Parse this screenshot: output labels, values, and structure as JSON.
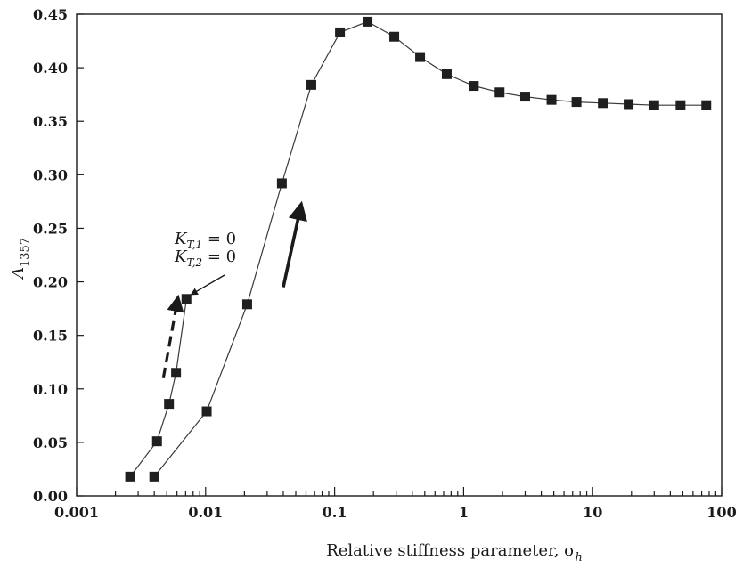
{
  "chart_data": {
    "type": "scatter",
    "xscale": "log",
    "xlim": [
      0.001,
      100
    ],
    "ylim": [
      0.0,
      0.45
    ],
    "xlabel": "Relative stiffness parameter, σ",
    "xlabel_sub": "h",
    "ylabel": "Λ",
    "ylabel_sub": "1357",
    "x_ticks": [
      {
        "value": 0.001,
        "label": "0.001"
      },
      {
        "value": 0.01,
        "label": "0.01"
      },
      {
        "value": 0.1,
        "label": "0.1"
      },
      {
        "value": 1,
        "label": "1"
      },
      {
        "value": 10,
        "label": "10"
      },
      {
        "value": 100,
        "label": "100"
      }
    ],
    "y_ticks": [
      {
        "value": 0.0,
        "label": "0.00"
      },
      {
        "value": 0.05,
        "label": "0.05"
      },
      {
        "value": 0.1,
        "label": "0.10"
      },
      {
        "value": 0.15,
        "label": "0.15"
      },
      {
        "value": 0.2,
        "label": "0.20"
      },
      {
        "value": 0.25,
        "label": "0.25"
      },
      {
        "value": 0.3,
        "label": "0.30"
      },
      {
        "value": 0.35,
        "label": "0.35"
      },
      {
        "value": 0.4,
        "label": "0.40"
      },
      {
        "value": 0.45,
        "label": "0.45"
      }
    ],
    "series": [
      {
        "x": [
          0.0026,
          0.0042,
          0.0052,
          0.0059,
          0.0071
        ],
        "y": [
          0.018,
          0.051,
          0.086,
          0.115,
          0.184
        ]
      },
      {
        "x": [
          0.004,
          0.0102,
          0.021,
          0.039,
          0.066,
          0.11,
          0.18,
          0.29,
          0.46,
          0.74,
          1.2,
          1.9,
          3.0,
          4.8,
          7.5,
          12,
          19,
          30,
          48,
          76
        ],
        "y": [
          0.018,
          0.079,
          0.179,
          0.292,
          0.384,
          0.433,
          0.443,
          0.429,
          0.41,
          0.394,
          0.383,
          0.377,
          0.373,
          0.37,
          0.368,
          0.367,
          0.366,
          0.365,
          0.365,
          0.365
        ]
      }
    ],
    "annotations": [
      {
        "text": "K",
        "sub": "T,1",
        "suffix": " = 0"
      },
      {
        "text": "K",
        "sub": "T,2",
        "suffix": " = 0"
      }
    ],
    "arrows": [
      {
        "style": "dashed",
        "from": [
          0.0047,
          0.11
        ],
        "to": [
          0.0061,
          0.185
        ]
      },
      {
        "style": "solid",
        "from": [
          0.04,
          0.195
        ],
        "to": [
          0.055,
          0.272
        ]
      },
      {
        "style": "thin",
        "label_ref": "annotation",
        "to": [
          0.0073,
          0.19
        ]
      }
    ]
  }
}
